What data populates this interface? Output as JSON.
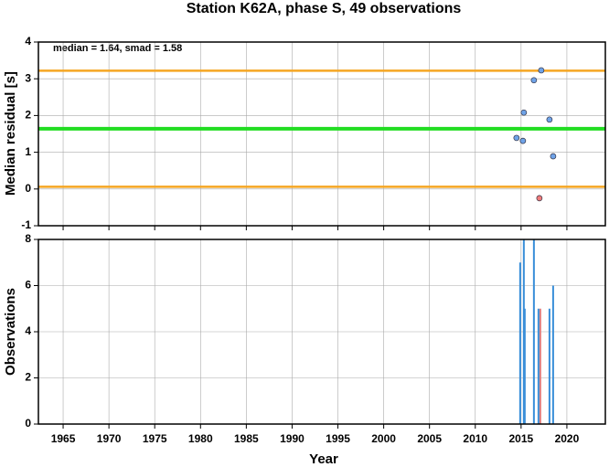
{
  "chart_data": [
    {
      "type": "scatter",
      "title": "Station K62A, phase S, 49 observations",
      "ylabel": "Median residual [s]",
      "annotation": "median = 1.64, smad = 1.58",
      "ylim": [
        -1,
        4
      ],
      "yticks": [
        -1,
        0,
        1,
        2,
        3,
        4
      ],
      "grid": true,
      "reference_lines": [
        {
          "value": 3.22,
          "color": "#f5a623"
        },
        {
          "value": 1.64,
          "color": "#22dd22"
        },
        {
          "value": 0.06,
          "color": "#f5a623"
        }
      ],
      "series": [
        {
          "color": "#6fa3e8",
          "x": [
            2014.5,
            2015.3,
            2015.2,
            2016.4,
            2017.2,
            2018.1,
            2018.5
          ],
          "values": [
            1.39,
            2.08,
            1.31,
            2.96,
            3.23,
            1.89,
            0.89
          ]
        },
        {
          "color": "#f07c7c",
          "x": [
            2017.0
          ],
          "values": [
            -0.25
          ]
        }
      ]
    },
    {
      "type": "bar",
      "ylabel": "Observations",
      "xlabel": "Year",
      "xlim": [
        1962.3,
        2024.2
      ],
      "xticks": [
        1965,
        1970,
        1975,
        1980,
        1985,
        1990,
        1995,
        2000,
        2005,
        2010,
        2015,
        2020
      ],
      "ylim": [
        0,
        8
      ],
      "yticks": [
        0,
        2,
        4,
        6,
        8
      ],
      "grid": true,
      "series": [
        {
          "color": "#3a8fd9",
          "x": [
            2014.9,
            2015.3,
            2015.4,
            2016.4,
            2016.9,
            2018.1,
            2018.5
          ],
          "values": [
            7,
            8,
            5,
            8,
            5,
            5,
            6
          ]
        },
        {
          "color": "#e08080",
          "x": [
            2017.1
          ],
          "values": [
            5
          ]
        }
      ]
    }
  ]
}
